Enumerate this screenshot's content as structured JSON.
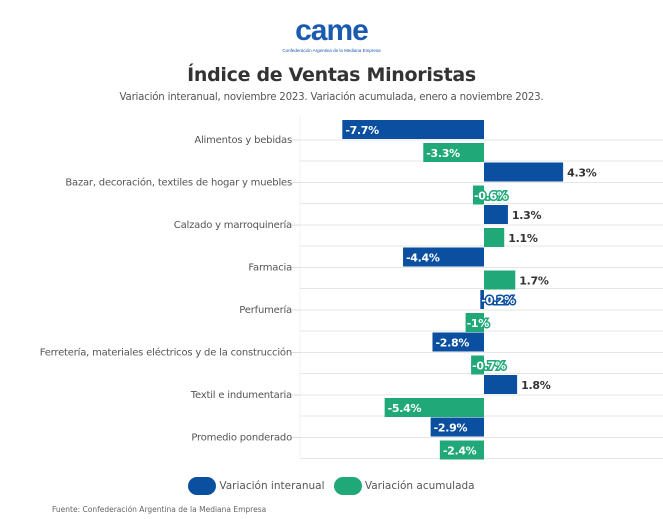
{
  "logo": {
    "text": "came",
    "subtext": "Confederación Argentina de la Mediana Empresa"
  },
  "colors": {
    "interanual": "#0a4fa0",
    "acumulada": "#20a878",
    "grid": "#e6e6e6",
    "label_dark": "#333333"
  },
  "chart_data": {
    "type": "bar",
    "orientation": "horizontal",
    "title": "Índice de Ventas Minoristas",
    "subtitle": "Variación interanual, noviembre 2023. Variación acumulada, enero a noviembre 2023.",
    "categories": [
      "Alimentos y bebidas",
      "Bazar, decoración, textiles de hogar y muebles",
      "Calzado y marroquinería",
      "Farmacia",
      "Perfumería",
      "Ferretería, materiales eléctricos y de la construcción",
      "Textil e indumentaria",
      "Promedio ponderado"
    ],
    "series": [
      {
        "name": "Variación interanual",
        "color": "#0a4fa0",
        "values": [
          -7.7,
          4.3,
          1.3,
          -4.4,
          -0.2,
          -2.8,
          1.8,
          -2.9
        ],
        "labels": [
          "-7.7%",
          "4.3%",
          "1.3%",
          "-4.4%",
          "-0.2%",
          "-2.8%",
          "1.8%",
          "-2.9%"
        ]
      },
      {
        "name": "Variación acumulada",
        "color": "#20a878",
        "values": [
          -3.3,
          -0.6,
          1.1,
          1.7,
          -1.0,
          -0.7,
          -5.4,
          -2.4
        ],
        "labels": [
          "-3.3%",
          "-0.6%",
          "1.1%",
          "1.7%",
          "-1%",
          "-0.7%",
          "-5.4%",
          "-2.4%"
        ]
      }
    ],
    "xlabel": "",
    "ylabel": "",
    "xlim": [
      -7.9,
      9.6
    ],
    "grid": true,
    "legend_position": "bottom-center",
    "value_unit": "%"
  },
  "legend": [
    {
      "label": "Variación interanual",
      "color": "#0a4fa0"
    },
    {
      "label": "Variación acumulada",
      "color": "#20a878"
    }
  ],
  "source": "Fuente: Confederación Argentina de la Mediana Empresa"
}
